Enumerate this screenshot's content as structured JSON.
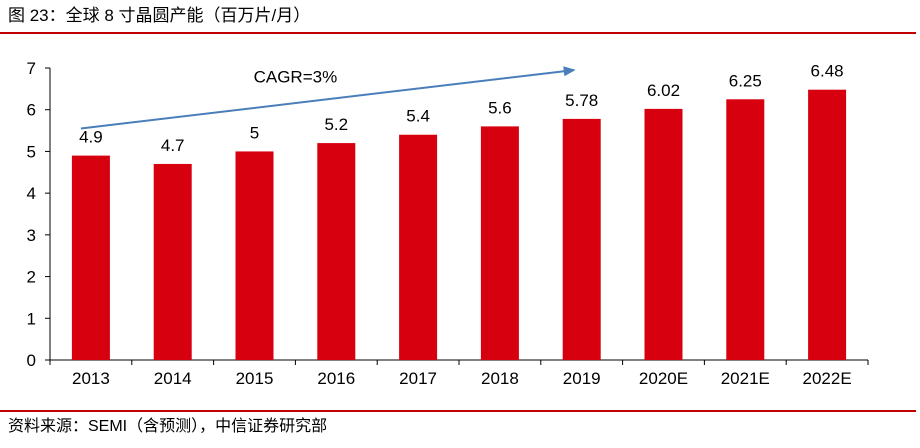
{
  "figure": {
    "title": "图 23：全球 8 寸晶圆产能（百万片/月）",
    "source": "资料来源：SEMI（含预测），中信证券研究部"
  },
  "chart_data": {
    "type": "bar",
    "title": "",
    "xlabel": "",
    "ylabel": "",
    "categories": [
      "2013",
      "2014",
      "2015",
      "2016",
      "2017",
      "2018",
      "2019",
      "2020E",
      "2021E",
      "2022E"
    ],
    "values": [
      4.9,
      4.7,
      5,
      5.2,
      5.4,
      5.6,
      5.78,
      6.02,
      6.25,
      6.48
    ],
    "value_labels": [
      "4.9",
      "4.7",
      "5",
      "5.2",
      "5.4",
      "5.6",
      "5.78",
      "6.02",
      "6.25",
      "6.48"
    ],
    "ylim": [
      0,
      7
    ],
    "yticks": [
      "0",
      "1",
      "2",
      "3",
      "4",
      "5",
      "6",
      "7"
    ],
    "grid": false,
    "legend": "none",
    "bar_color": "#d7000f",
    "annotation": {
      "text": "CAGR=3%",
      "arrow_color": "#4a7ebb",
      "arrow_from": [
        "2013",
        5.55
      ],
      "arrow_to": [
        "2019",
        6.95
      ],
      "text_at": [
        "2015.5",
        6.65
      ]
    }
  }
}
